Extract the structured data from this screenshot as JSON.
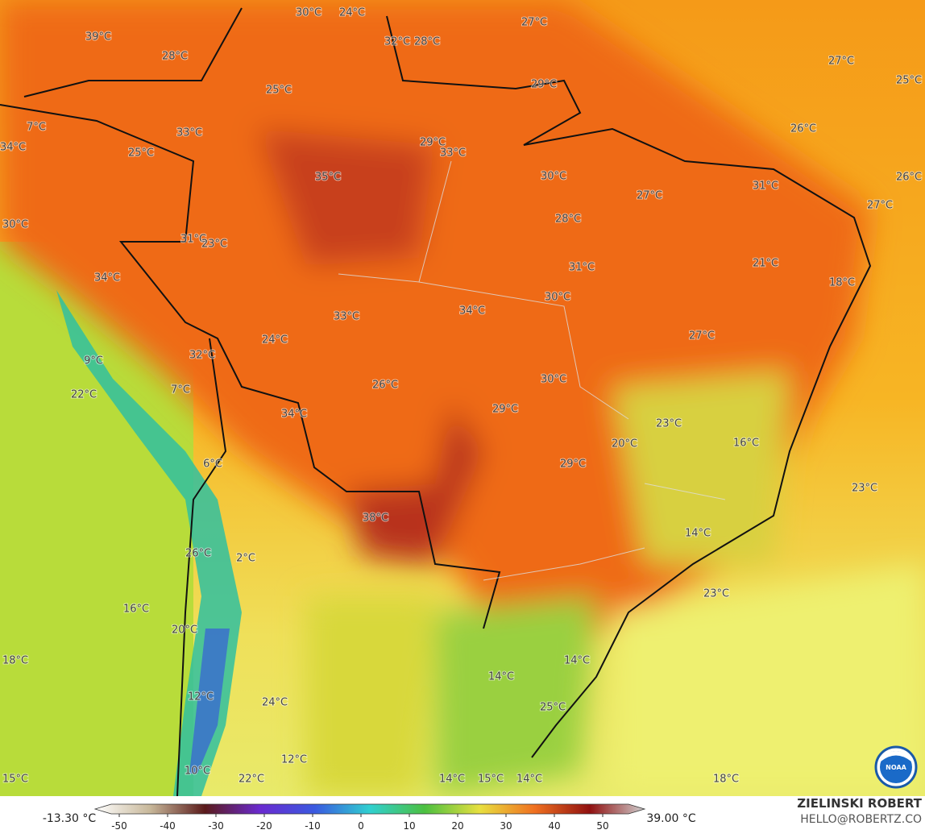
{
  "map": {
    "labels": [
      "30°C",
      "24°C",
      "27°C",
      "39°C",
      "32°C",
      "28°C",
      "28°C",
      "27°C",
      "25°C",
      "29°C",
      "25°C",
      "7°C",
      "26°C",
      "33°C",
      "34°C",
      "25°C",
      "29°C",
      "33°C",
      "35°C",
      "30°C",
      "26°C",
      "31°C",
      "27°C",
      "27°C",
      "28°C",
      "30°C",
      "31°C",
      "23°C",
      "21°C",
      "31°C",
      "34°C",
      "18°C",
      "30°C",
      "34°C",
      "33°C",
      "27°C",
      "24°C",
      "32°C",
      "9°C",
      "30°C",
      "26°C",
      "7°C",
      "22°C",
      "29°C",
      "34°C",
      "23°C",
      "20°C",
      "16°C",
      "6°C",
      "29°C",
      "23°C",
      "38°C",
      "14°C",
      "26°C",
      "2°C",
      "23°C",
      "16°C",
      "20°C",
      "18°C",
      "14°C",
      "14°C",
      "12°C",
      "24°C",
      "25°C",
      "12°C",
      "10°C",
      "22°C",
      "14°C",
      "15°C",
      "14°C",
      "15°C",
      "18°C"
    ]
  },
  "colorbar": {
    "min_label": "-13.30 °C",
    "max_label": "39.00 °C",
    "ticks": [
      -50,
      -40,
      -30,
      -20,
      -10,
      0,
      10,
      20,
      30,
      40,
      50
    ]
  },
  "credit": {
    "author": "ZIELINSKI ROBERT",
    "email": "HELLO@ROBERTZ.CO",
    "logo": "NOAA"
  }
}
